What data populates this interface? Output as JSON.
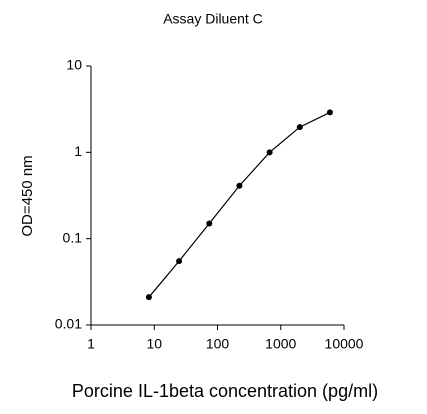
{
  "chart_data": {
    "type": "line",
    "title": "Assay Diluent C",
    "x_label": "Porcine IL-1beta concentration (pg/ml)",
    "y_label": "OD=450 nm",
    "x": [
      8.23,
      24.7,
      74.1,
      222,
      667,
      2000,
      6000
    ],
    "series": [
      {
        "color": "#000000",
        "values": [
          0.021,
          0.055,
          0.15,
          0.41,
          1.0,
          1.96,
          2.9
        ]
      }
    ],
    "x_log": true,
    "y_log": true,
    "xlim": [
      1,
      10000
    ],
    "ylim": [
      0.01,
      10
    ],
    "xticks": [
      1,
      10,
      100,
      1000,
      10000
    ],
    "yticks": [
      0.01,
      0.1,
      1,
      10
    ]
  }
}
